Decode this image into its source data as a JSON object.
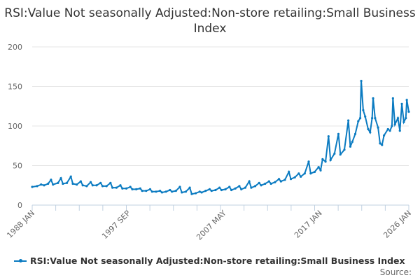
{
  "chart_data": {
    "type": "line",
    "title": "RSI:Value Not seasonally Adjusted:Non-store retailing:Small Business Index",
    "xlabel": "",
    "ylabel": "",
    "ylim": [
      0,
      200
    ],
    "yticks": [
      "0",
      "50",
      "100",
      "150",
      "200"
    ],
    "xlim": [
      1988.0,
      2026.0
    ],
    "xticks": [
      {
        "label": "1988 JAN",
        "x": 1988.0
      },
      {
        "label": "1997 SEP",
        "x": 1997.67
      },
      {
        "label": "2007 MAY",
        "x": 2007.33
      },
      {
        "label": "2017 JAN",
        "x": 2017.0
      },
      {
        "label": "2026 JAN",
        "x": 2026.0
      }
    ],
    "grid": true,
    "legend_position": "bottom",
    "series": [
      {
        "name": "RSI:Value Not seasonally Adjusted:Non-store retailing:Small Business Index",
        "color": "#0b7bc1",
        "points": [
          [
            1988.0,
            23
          ],
          [
            1988.5,
            24
          ],
          [
            1988.9,
            26
          ],
          [
            1989.2,
            25
          ],
          [
            1989.6,
            27
          ],
          [
            1989.9,
            32
          ],
          [
            1990.1,
            26
          ],
          [
            1990.6,
            28
          ],
          [
            1990.9,
            34
          ],
          [
            1991.1,
            27
          ],
          [
            1991.5,
            28
          ],
          [
            1991.9,
            36
          ],
          [
            1992.1,
            27
          ],
          [
            1992.5,
            26
          ],
          [
            1992.9,
            30
          ],
          [
            1993.1,
            25
          ],
          [
            1993.5,
            24
          ],
          [
            1993.9,
            29
          ],
          [
            1994.1,
            25
          ],
          [
            1994.5,
            25
          ],
          [
            1994.9,
            28
          ],
          [
            1995.1,
            24
          ],
          [
            1995.5,
            24
          ],
          [
            1995.9,
            28
          ],
          [
            1996.1,
            22
          ],
          [
            1996.5,
            22
          ],
          [
            1996.9,
            25
          ],
          [
            1997.1,
            21
          ],
          [
            1997.5,
            21
          ],
          [
            1997.9,
            23
          ],
          [
            1998.1,
            20
          ],
          [
            1998.5,
            20
          ],
          [
            1998.9,
            21
          ],
          [
            1999.1,
            18
          ],
          [
            1999.5,
            18
          ],
          [
            1999.9,
            20
          ],
          [
            2000.1,
            17
          ],
          [
            2000.5,
            17
          ],
          [
            2000.9,
            18
          ],
          [
            2001.1,
            16
          ],
          [
            2001.5,
            17
          ],
          [
            2001.9,
            19
          ],
          [
            2002.1,
            17
          ],
          [
            2002.5,
            18
          ],
          [
            2002.9,
            23
          ],
          [
            2003.1,
            16
          ],
          [
            2003.5,
            17
          ],
          [
            2003.9,
            22
          ],
          [
            2004.1,
            14
          ],
          [
            2004.5,
            15
          ],
          [
            2004.9,
            17
          ],
          [
            2005.1,
            16
          ],
          [
            2005.5,
            18
          ],
          [
            2005.9,
            20
          ],
          [
            2006.1,
            18
          ],
          [
            2006.5,
            19
          ],
          [
            2006.9,
            22
          ],
          [
            2007.1,
            19
          ],
          [
            2007.5,
            20
          ],
          [
            2007.9,
            23
          ],
          [
            2008.1,
            19
          ],
          [
            2008.5,
            21
          ],
          [
            2008.9,
            24
          ],
          [
            2009.1,
            20
          ],
          [
            2009.5,
            22
          ],
          [
            2009.9,
            30
          ],
          [
            2010.1,
            22
          ],
          [
            2010.5,
            24
          ],
          [
            2010.9,
            28
          ],
          [
            2011.1,
            25
          ],
          [
            2011.5,
            27
          ],
          [
            2011.9,
            30
          ],
          [
            2012.1,
            27
          ],
          [
            2012.5,
            29
          ],
          [
            2012.9,
            33
          ],
          [
            2013.1,
            30
          ],
          [
            2013.5,
            32
          ],
          [
            2013.9,
            42
          ],
          [
            2014.1,
            33
          ],
          [
            2014.5,
            35
          ],
          [
            2014.9,
            40
          ],
          [
            2015.1,
            36
          ],
          [
            2015.5,
            40
          ],
          [
            2015.9,
            55
          ],
          [
            2016.1,
            40
          ],
          [
            2016.5,
            42
          ],
          [
            2016.9,
            48
          ],
          [
            2017.1,
            44
          ],
          [
            2017.3,
            58
          ],
          [
            2017.6,
            55
          ],
          [
            2017.9,
            87
          ],
          [
            2018.1,
            57
          ],
          [
            2018.5,
            65
          ],
          [
            2018.9,
            90
          ],
          [
            2019.1,
            64
          ],
          [
            2019.5,
            70
          ],
          [
            2019.9,
            107
          ],
          [
            2020.1,
            74
          ],
          [
            2020.3,
            80
          ],
          [
            2020.6,
            90
          ],
          [
            2020.9,
            106
          ],
          [
            2021.1,
            110
          ],
          [
            2021.2,
            157
          ],
          [
            2021.4,
            120
          ],
          [
            2021.6,
            112
          ],
          [
            2021.9,
            96
          ],
          [
            2022.1,
            92
          ],
          [
            2022.3,
            110
          ],
          [
            2022.4,
            135
          ],
          [
            2022.6,
            110
          ],
          [
            2022.9,
            98
          ],
          [
            2023.1,
            78
          ],
          [
            2023.3,
            76
          ],
          [
            2023.5,
            88
          ],
          [
            2023.9,
            96
          ],
          [
            2024.1,
            94
          ],
          [
            2024.3,
            100
          ],
          [
            2024.4,
            135
          ],
          [
            2024.6,
            102
          ],
          [
            2024.9,
            110
          ],
          [
            2025.1,
            94
          ],
          [
            2025.3,
            128
          ],
          [
            2025.5,
            105
          ],
          [
            2025.7,
            110
          ],
          [
            2025.8,
            133
          ],
          [
            2026.0,
            118
          ]
        ]
      }
    ],
    "source_label": "Source:"
  }
}
